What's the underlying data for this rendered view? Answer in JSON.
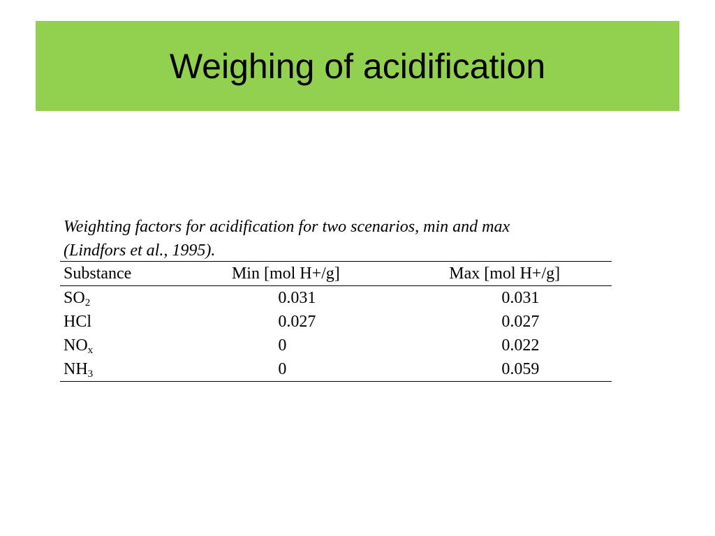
{
  "slide": {
    "title": "Weighing of acidification",
    "title_bar_color": "#92d050"
  },
  "table": {
    "caption_line1": "Weighting factors for acidification for two scenarios, min and max",
    "caption_line2": "(Lindfors et al., 1995).",
    "headers": {
      "substance": "Substance",
      "min": "Min [mol H+/g]",
      "max": "Max [mol H+/g]"
    },
    "rows": [
      {
        "base": "SO",
        "sub": "2",
        "min": "0.031",
        "max": "0.031"
      },
      {
        "base": "HCl",
        "sub": "",
        "min": "0.027",
        "max": "0.027"
      },
      {
        "base": "NO",
        "sub": "x",
        "min": "0",
        "max": "0.022"
      },
      {
        "base": "NH",
        "sub": "3",
        "min": "0",
        "max": "0.059"
      }
    ]
  }
}
